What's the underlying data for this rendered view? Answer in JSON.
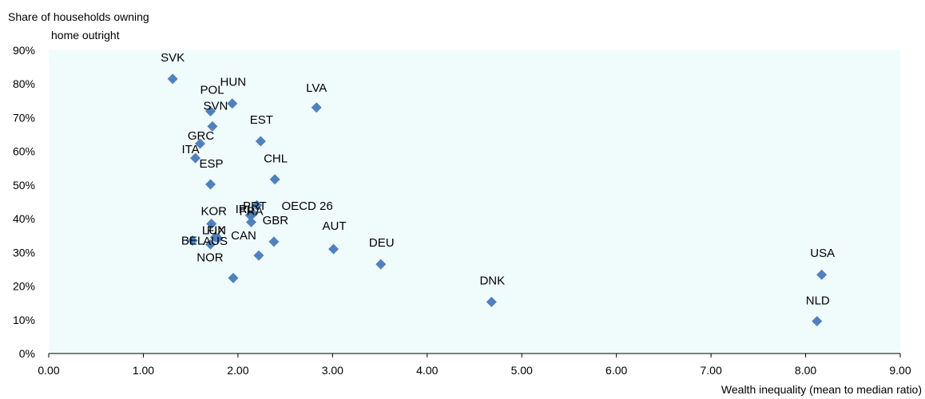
{
  "chart_data": {
    "type": "scatter",
    "ylabel_lines": [
      "Share of households owning",
      "home outright"
    ],
    "xlabel": "Wealth inequality (mean to median ratio)",
    "xlim": [
      0,
      9
    ],
    "ylim": [
      0,
      90
    ],
    "x_ticks": [
      "0.00",
      "1.00",
      "2.00",
      "3.00",
      "4.00",
      "5.00",
      "6.00",
      "7.00",
      "8.00",
      "9.00"
    ],
    "y_ticks": [
      "0%",
      "10%",
      "20%",
      "30%",
      "40%",
      "50%",
      "60%",
      "70%",
      "80%",
      "90%"
    ],
    "grid": false,
    "plot_background": "#f0fbfc",
    "marker_color": "#4f81bd",
    "points": [
      {
        "label": "SVK",
        "x": 1.31,
        "y": 81.5
      },
      {
        "label": "HUN",
        "x": 1.94,
        "y": 74.2
      },
      {
        "label": "POL",
        "x": 1.71,
        "y": 71.9
      },
      {
        "label": "SVN",
        "x": 1.73,
        "y": 67.4
      },
      {
        "label": "LVA",
        "x": 2.83,
        "y": 73.0
      },
      {
        "label": "EST",
        "x": 2.24,
        "y": 63.0
      },
      {
        "label": "GRC",
        "x": 1.6,
        "y": 62.3
      },
      {
        "label": "ITA",
        "x": 1.55,
        "y": 58.0
      },
      {
        "label": "ESP",
        "x": 1.71,
        "y": 50.2
      },
      {
        "label": "CHL",
        "x": 2.39,
        "y": 51.7
      },
      {
        "label": "OECD 26",
        "x": 2.2,
        "y": 44.0
      },
      {
        "label": "PRT",
        "x": 2.16,
        "y": 41.5
      },
      {
        "label": "IRL",
        "x": 2.13,
        "y": 41.0
      },
      {
        "label": "FRA",
        "x": 2.14,
        "y": 39.0
      },
      {
        "label": "KOR",
        "x": 1.72,
        "y": 38.5
      },
      {
        "label": "LUX",
        "x": 1.76,
        "y": 34.5
      },
      {
        "label": "FIN",
        "x": 1.79,
        "y": 34.2
      },
      {
        "label": "BEL",
        "x": 1.52,
        "y": 33.5
      },
      {
        "label": "AUS",
        "x": 1.71,
        "y": 32.4
      },
      {
        "label": "GBR",
        "x": 2.38,
        "y": 33.2
      },
      {
        "label": "CAN",
        "x": 2.22,
        "y": 29.1
      },
      {
        "label": "NOR",
        "x": 1.95,
        "y": 22.4
      },
      {
        "label": "AUT",
        "x": 3.01,
        "y": 31.0
      },
      {
        "label": "DEU",
        "x": 3.51,
        "y": 26.5
      },
      {
        "label": "DNK",
        "x": 4.68,
        "y": 15.3
      },
      {
        "label": "USA",
        "x": 8.17,
        "y": 23.4
      },
      {
        "label": "NLD",
        "x": 8.12,
        "y": 9.6
      }
    ]
  }
}
